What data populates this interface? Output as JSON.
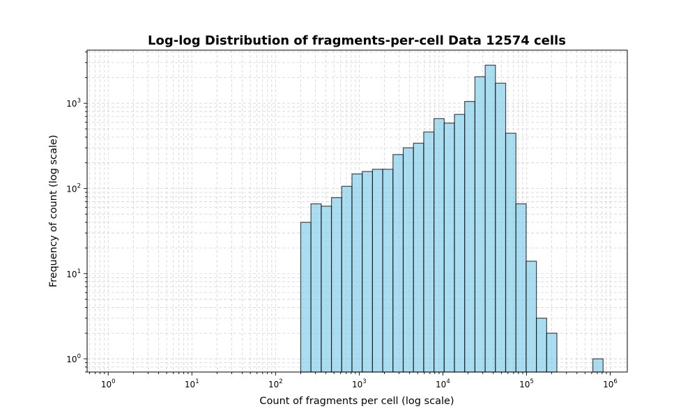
{
  "chart_data": {
    "type": "bar",
    "title": "Log-log Distribution of fragments-per-cell Data 12574 cells",
    "xlabel": "Count of fragments per cell (log scale)",
    "ylabel": "Frequency of count (log scale)",
    "xscale": "log",
    "yscale": "log",
    "xlim": [
      0.56,
      1600000
    ],
    "ylim": [
      0.7,
      4200
    ],
    "grid": true,
    "grid_minor": true,
    "bar_color": "#87CEEB",
    "edge_color": "#000000",
    "x_ticks": [
      {
        "base": "10",
        "exp": "0",
        "value": 1
      },
      {
        "base": "10",
        "exp": "1",
        "value": 10
      },
      {
        "base": "10",
        "exp": "2",
        "value": 100
      },
      {
        "base": "10",
        "exp": "3",
        "value": 1000
      },
      {
        "base": "10",
        "exp": "4",
        "value": 10000
      },
      {
        "base": "10",
        "exp": "5",
        "value": 100000
      },
      {
        "base": "10",
        "exp": "6",
        "value": 1000000
      }
    ],
    "y_ticks": [
      {
        "base": "10",
        "exp": "0",
        "value": 1
      },
      {
        "base": "10",
        "exp": "1",
        "value": 10
      },
      {
        "base": "10",
        "exp": "2",
        "value": 100
      },
      {
        "base": "10",
        "exp": "3",
        "value": 1000
      }
    ],
    "bins": [
      {
        "x0": 200,
        "x1": 265,
        "count": 40
      },
      {
        "x0": 265,
        "x1": 352,
        "count": 66
      },
      {
        "x0": 352,
        "x1": 466,
        "count": 62
      },
      {
        "x0": 466,
        "x1": 618,
        "count": 78
      },
      {
        "x0": 618,
        "x1": 820,
        "count": 106
      },
      {
        "x0": 820,
        "x1": 1087,
        "count": 148
      },
      {
        "x0": 1087,
        "x1": 1441,
        "count": 158
      },
      {
        "x0": 1441,
        "x1": 1911,
        "count": 168
      },
      {
        "x0": 1911,
        "x1": 2533,
        "count": 168
      },
      {
        "x0": 2533,
        "x1": 3358,
        "count": 250
      },
      {
        "x0": 3358,
        "x1": 4452,
        "count": 300
      },
      {
        "x0": 4452,
        "x1": 5902,
        "count": 340
      },
      {
        "x0": 5902,
        "x1": 7824,
        "count": 460
      },
      {
        "x0": 7824,
        "x1": 10372,
        "count": 660
      },
      {
        "x0": 10372,
        "x1": 13750,
        "count": 585
      },
      {
        "x0": 13750,
        "x1": 18228,
        "count": 740
      },
      {
        "x0": 18228,
        "x1": 24165,
        "count": 1050
      },
      {
        "x0": 24165,
        "x1": 32035,
        "count": 2050
      },
      {
        "x0": 32035,
        "x1": 42468,
        "count": 2800
      },
      {
        "x0": 42468,
        "x1": 56299,
        "count": 1720
      },
      {
        "x0": 56299,
        "x1": 74635,
        "count": 445
      },
      {
        "x0": 74635,
        "x1": 98942,
        "count": 66
      },
      {
        "x0": 98942,
        "x1": 131165,
        "count": 14
      },
      {
        "x0": 131165,
        "x1": 173882,
        "count": 3
      },
      {
        "x0": 173882,
        "x1": 230512,
        "count": 2
      },
      {
        "x0": 620000,
        "x1": 822000,
        "count": 1
      }
    ]
  }
}
